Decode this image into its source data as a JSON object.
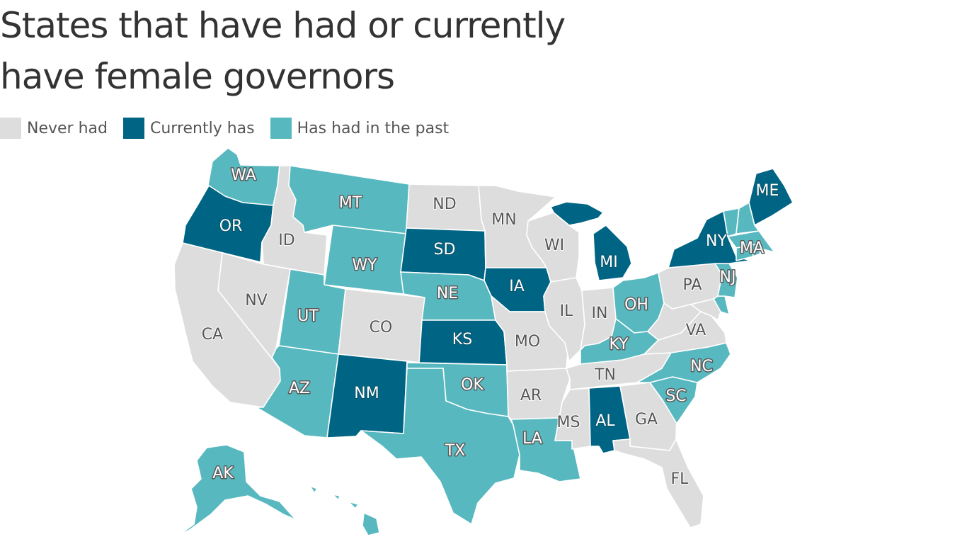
{
  "title_line1": "States that have had or currently",
  "title_line2": "have female governors",
  "colors": {
    "never": "#dddddd",
    "current": "#006584",
    "past": "#57b8bf",
    "border": "#ffffff"
  },
  "legend": [
    {
      "key": "never",
      "label": "Never had"
    },
    {
      "key": "current",
      "label": "Currently has"
    },
    {
      "key": "past",
      "label": "Has had in the past"
    }
  ],
  "states": [
    {
      "abbr": "WA",
      "status": "past"
    },
    {
      "abbr": "OR",
      "status": "current"
    },
    {
      "abbr": "CA",
      "status": "never"
    },
    {
      "abbr": "ID",
      "status": "never"
    },
    {
      "abbr": "NV",
      "status": "never"
    },
    {
      "abbr": "MT",
      "status": "past"
    },
    {
      "abbr": "WY",
      "status": "past"
    },
    {
      "abbr": "UT",
      "status": "past"
    },
    {
      "abbr": "AZ",
      "status": "past"
    },
    {
      "abbr": "CO",
      "status": "never"
    },
    {
      "abbr": "NM",
      "status": "current"
    },
    {
      "abbr": "ND",
      "status": "never"
    },
    {
      "abbr": "SD",
      "status": "current"
    },
    {
      "abbr": "NE",
      "status": "past"
    },
    {
      "abbr": "KS",
      "status": "current"
    },
    {
      "abbr": "OK",
      "status": "past"
    },
    {
      "abbr": "TX",
      "status": "past"
    },
    {
      "abbr": "MN",
      "status": "never"
    },
    {
      "abbr": "IA",
      "status": "current"
    },
    {
      "abbr": "MO",
      "status": "never"
    },
    {
      "abbr": "AR",
      "status": "never"
    },
    {
      "abbr": "LA",
      "status": "past"
    },
    {
      "abbr": "WI",
      "status": "never"
    },
    {
      "abbr": "IL",
      "status": "never"
    },
    {
      "abbr": "MI",
      "status": "current"
    },
    {
      "abbr": "IN",
      "status": "never"
    },
    {
      "abbr": "OH",
      "status": "past"
    },
    {
      "abbr": "KY",
      "status": "past"
    },
    {
      "abbr": "TN",
      "status": "never"
    },
    {
      "abbr": "MS",
      "status": "never"
    },
    {
      "abbr": "AL",
      "status": "current"
    },
    {
      "abbr": "GA",
      "status": "never"
    },
    {
      "abbr": "FL",
      "status": "never"
    },
    {
      "abbr": "SC",
      "status": "past"
    },
    {
      "abbr": "NC",
      "status": "past"
    },
    {
      "abbr": "VA",
      "status": "never"
    },
    {
      "abbr": "WV",
      "status": "never"
    },
    {
      "abbr": "MD",
      "status": "never"
    },
    {
      "abbr": "DE",
      "status": "past"
    },
    {
      "abbr": "PA",
      "status": "never"
    },
    {
      "abbr": "NJ",
      "status": "past"
    },
    {
      "abbr": "NY",
      "status": "current"
    },
    {
      "abbr": "CT",
      "status": "past"
    },
    {
      "abbr": "RI",
      "status": "past"
    },
    {
      "abbr": "MA",
      "status": "past"
    },
    {
      "abbr": "VT",
      "status": "past"
    },
    {
      "abbr": "NH",
      "status": "past"
    },
    {
      "abbr": "ME",
      "status": "current"
    },
    {
      "abbr": "AK",
      "status": "past"
    },
    {
      "abbr": "HI",
      "status": "past"
    }
  ]
}
